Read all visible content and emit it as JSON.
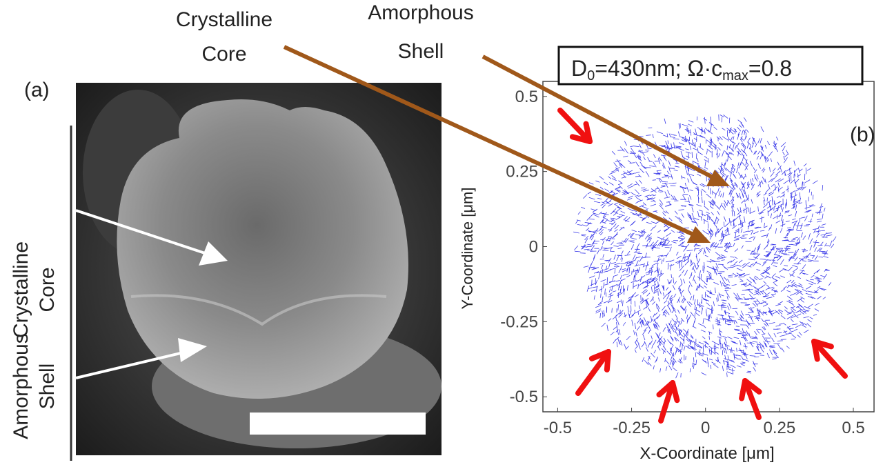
{
  "panel_a": {
    "label": "(a)",
    "side_labels": {
      "core_line1": "Crystalline",
      "core_line2": "Core",
      "shell_line1": "Amorphous",
      "shell_line2": "Shell"
    }
  },
  "top_labels": {
    "core_line1": "Crystalline",
    "core_line2": "Core",
    "shell_line1": "Amorphous",
    "shell_line2": "Shell"
  },
  "panel_b": {
    "label": "(b)",
    "legend": {
      "d0": "D",
      "d0_sub": "0",
      "d0_rest": "=430nm; Ω·c",
      "c_sub": "max",
      "c_rest": "=0.8"
    }
  },
  "colors": {
    "mesh": "#3a3ae8",
    "red_arrow": "#f01010",
    "brown_arrow": "#a0581a"
  },
  "chart_data": {
    "type": "mesh",
    "xlabel": "X-Coordinate [μm]",
    "ylabel": "Y-Coordinate [μm]",
    "xlim": [
      -0.55,
      0.57
    ],
    "ylim": [
      -0.55,
      0.55
    ],
    "xticks": [
      "-0.5",
      "-0.25",
      "0",
      "0.25",
      "0.5"
    ],
    "xtick_values": [
      -0.5,
      -0.25,
      0,
      0.25,
      0.5
    ],
    "yticks": [
      "0.5",
      "0.25",
      "0",
      "-0.25",
      "-0.5"
    ],
    "ytick_values": [
      0.5,
      0.25,
      0,
      -0.25,
      -0.5
    ],
    "particle_radius": 0.45
  }
}
